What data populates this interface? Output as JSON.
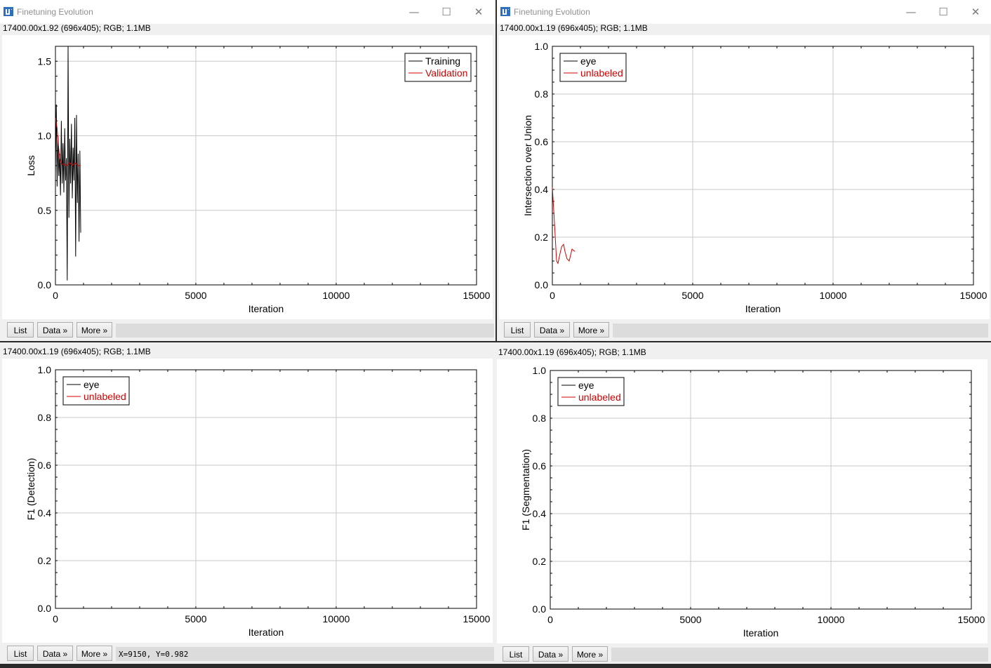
{
  "windows": [
    {
      "id": "w0",
      "title": "Finetuning Evolution",
      "info": "17400.00x1.92  (696x405); RGB; 1.1MB",
      "buttons": {
        "list": "List",
        "data": "Data »",
        "more": "More »"
      },
      "status": "",
      "chart_data": {
        "type": "line",
        "xlabel": "Iteration",
        "ylabel": "Loss",
        "xlim": [
          0,
          15000
        ],
        "ylim": [
          0,
          1.6
        ],
        "xticks": [
          "0",
          "5000",
          "10000",
          "15000"
        ],
        "yticks": [
          "0.0",
          "0.5",
          "1.0",
          "1.5"
        ],
        "grid": true,
        "legend_position": "top-right",
        "series": [
          {
            "name": "Training",
            "color": "#000000",
            "x": [
              0,
              30,
              60,
              90,
              120,
              150,
              180,
              210,
              240,
              270,
              300,
              330,
              360,
              390,
              420,
              450,
              480,
              510,
              540,
              570,
              600,
              630,
              660,
              690,
              720,
              750,
              780,
              810,
              840,
              870,
              900
            ],
            "y": [
              0.75,
              1.21,
              0.66,
              1.0,
              0.73,
              0.88,
              0.6,
              1.1,
              0.68,
              0.95,
              0.62,
              1.05,
              0.7,
              0.85,
              0.03,
              1.6,
              0.45,
              0.98,
              0.68,
              1.08,
              0.58,
              0.92,
              0.7,
              1.12,
              0.19,
              1.14,
              0.55,
              0.88,
              0.29,
              0.9,
              0.35
            ]
          },
          {
            "name": "Validation",
            "color": "#d40000",
            "x": [
              0,
              60,
              100,
              150,
              220,
              300,
              400,
              500,
              600,
              700,
              800,
              900
            ],
            "y": [
              1.12,
              1.05,
              0.95,
              0.85,
              0.81,
              0.81,
              0.8,
              0.82,
              0.8,
              0.82,
              0.8,
              0.8
            ]
          }
        ]
      }
    },
    {
      "id": "w1",
      "title": "Finetuning Evolution",
      "info": "17400.00x1.19  (696x405); RGB; 1.1MB",
      "buttons": {
        "list": "List",
        "data": "Data »",
        "more": "More »"
      },
      "status": "",
      "chart_data": {
        "type": "line",
        "xlabel": "Iteration",
        "ylabel": "Intersection over Union",
        "xlim": [
          0,
          15000
        ],
        "ylim": [
          0,
          1.0
        ],
        "xticks": [
          "0",
          "5000",
          "10000",
          "15000"
        ],
        "yticks": [
          "0.0",
          "0.2",
          "0.4",
          "0.6",
          "0.8",
          "1.0"
        ],
        "grid": true,
        "legend_position": "top-left",
        "series": [
          {
            "name": "eye",
            "color": "#000000",
            "x": [],
            "y": []
          },
          {
            "name": "unlabeled",
            "color": "#d40000",
            "x": [
              0,
              80,
              150,
              200,
              270,
              330,
              400,
              450,
              520,
              600,
              700,
              800
            ],
            "y": [
              0.41,
              0.25,
              0.1,
              0.09,
              0.13,
              0.16,
              0.17,
              0.14,
              0.11,
              0.1,
              0.15,
              0.14
            ]
          }
        ]
      }
    },
    {
      "id": "w2",
      "title": "",
      "info": "17400.00x1.19  (696x405); RGB; 1.1MB",
      "buttons": {
        "list": "List",
        "data": "Data »",
        "more": "More »"
      },
      "status": "X=9150, Y=0.982",
      "chart_data": {
        "type": "line",
        "xlabel": "Iteration",
        "ylabel": "F1 (Detection)",
        "xlim": [
          0,
          15000
        ],
        "ylim": [
          0,
          1.0
        ],
        "xticks": [
          "0",
          "5000",
          "10000",
          "15000"
        ],
        "yticks": [
          "0.0",
          "0.2",
          "0.4",
          "0.6",
          "0.8",
          "1.0"
        ],
        "grid": true,
        "legend_position": "top-left",
        "series": [
          {
            "name": "eye",
            "color": "#000000",
            "x": [],
            "y": []
          },
          {
            "name": "unlabeled",
            "color": "#d40000",
            "x": [],
            "y": []
          }
        ]
      }
    },
    {
      "id": "w3",
      "title": "",
      "info": "17400.00x1.19  (696x405); RGB; 1.1MB",
      "buttons": {
        "list": "List",
        "data": "Data »",
        "more": "More »"
      },
      "status": "",
      "chart_data": {
        "type": "line",
        "xlabel": "Iteration",
        "ylabel": "F1 (Segmentation)",
        "xlim": [
          0,
          15000
        ],
        "ylim": [
          0,
          1.0
        ],
        "xticks": [
          "0",
          "5000",
          "10000",
          "15000"
        ],
        "yticks": [
          "0.0",
          "0.2",
          "0.4",
          "0.6",
          "0.8",
          "1.0"
        ],
        "grid": true,
        "legend_position": "top-left",
        "series": [
          {
            "name": "eye",
            "color": "#000000",
            "x": [],
            "y": []
          },
          {
            "name": "unlabeled",
            "color": "#d40000",
            "x": [],
            "y": []
          }
        ]
      }
    }
  ],
  "window_controls": {
    "minimize": "—",
    "maximize": "☐",
    "close": "✕"
  },
  "icons": {
    "app": "imagej-icon",
    "minimize": "minimize-icon",
    "maximize": "maximize-icon",
    "close": "close-icon"
  }
}
